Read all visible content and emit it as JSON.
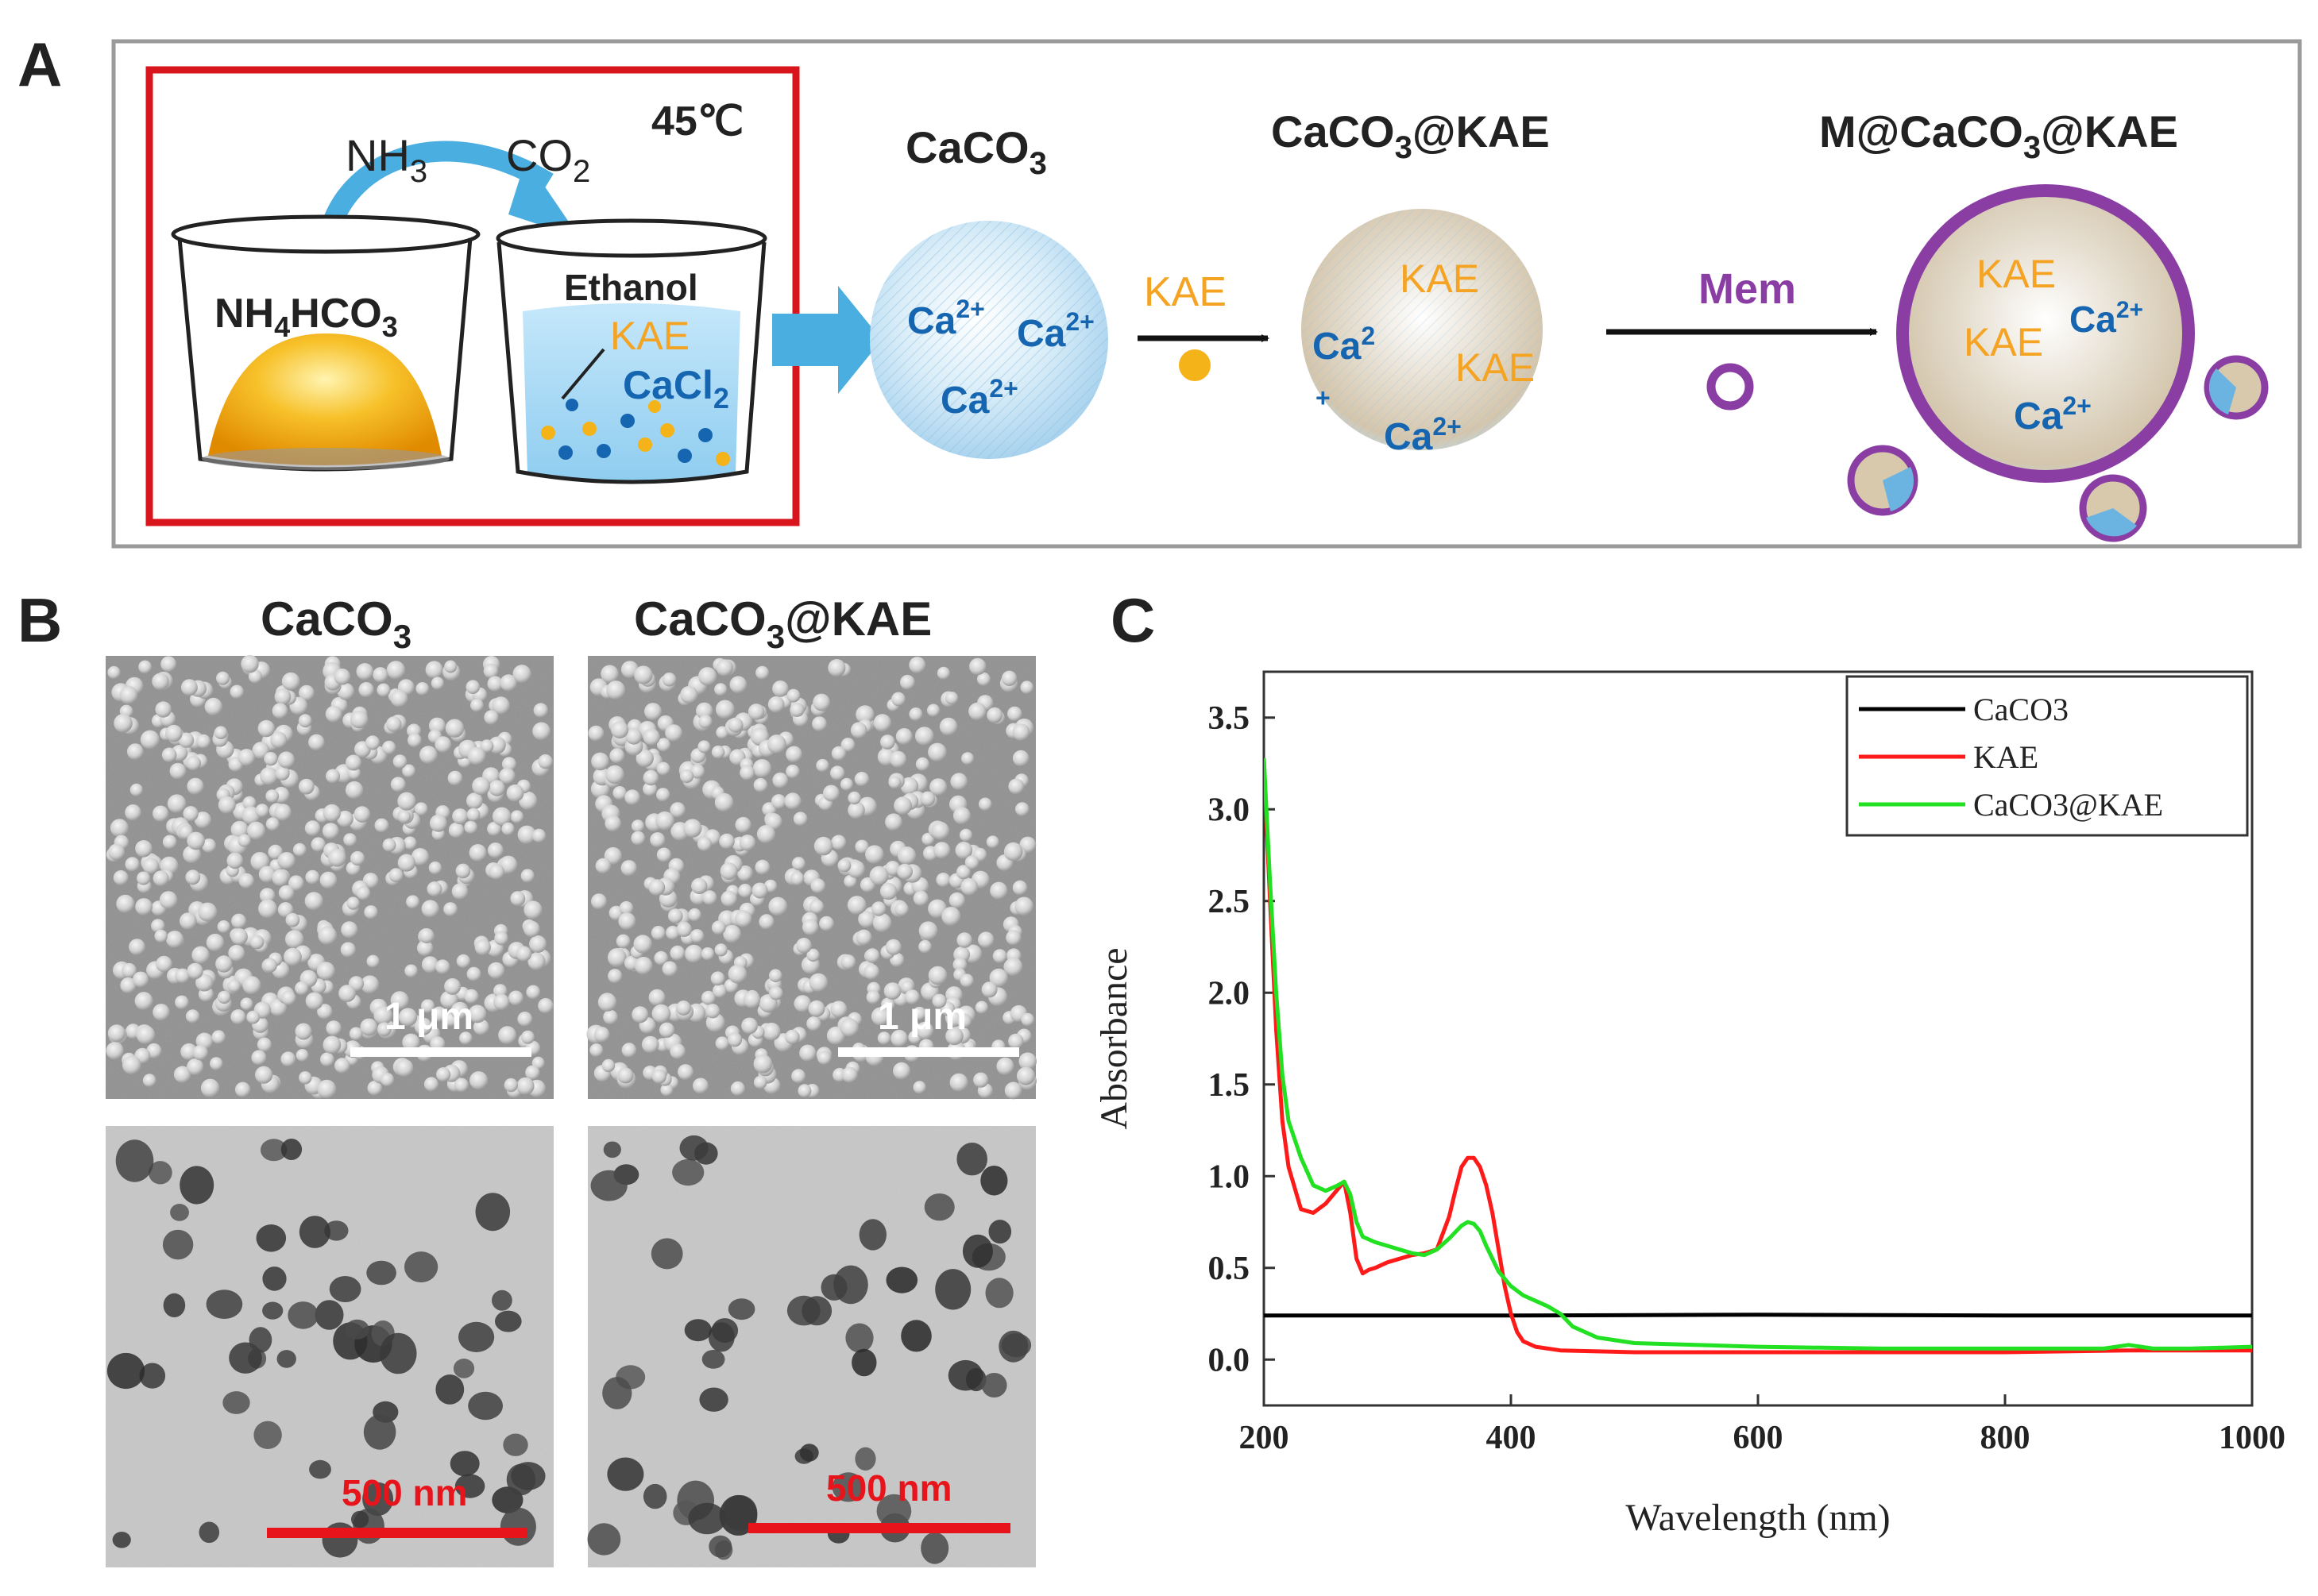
{
  "panels": {
    "a": {
      "letter": "A"
    },
    "b": {
      "letter": "B"
    },
    "c": {
      "letter": "C"
    }
  },
  "schematic": {
    "temperature": "45℃",
    "gas_left": {
      "main": "NH",
      "sub": "3"
    },
    "gas_right": {
      "main": "CO",
      "sub": "2"
    },
    "beaker_left": {
      "a": "NH",
      "sub": "4",
      "b": "HCO",
      "sub2": "3"
    },
    "beaker_right": {
      "solvent": "Ethanol",
      "drug": "KAE",
      "salt": "CaCl",
      "salt_sub": "2"
    },
    "stage1": {
      "title": "CaCO",
      "title_sub": "3",
      "ions": [
        "Ca",
        "Ca",
        "Ca"
      ],
      "charge": "2+"
    },
    "step1": {
      "label": "KAE"
    },
    "stage2": {
      "title_a": "CaCO",
      "title_sub": "3",
      "title_b": "@KAE",
      "kae_labels": [
        "KAE",
        "KAE"
      ],
      "ion1": "Ca",
      "ion1_sup": "2",
      "ion1_plus": "+",
      "ion2": "Ca",
      "ion2_sup": "2+"
    },
    "step2": {
      "label": "Mem"
    },
    "stage3": {
      "title_a": "M@CaCO",
      "title_sub": "3",
      "title_b": "@KAE",
      "kae_labels": [
        "KAE",
        "KAE"
      ],
      "ion": "Ca",
      "ion_sup": "2+"
    },
    "colors": {
      "border_red": "#d8141c",
      "ca_blue": "#1565b0",
      "kae_orange": "#f5a323",
      "mem_purple": "#8a3ea3",
      "sky": "#4aaee0"
    }
  },
  "micrographs": {
    "col1_title": {
      "a": "CaCO",
      "sub": "3"
    },
    "col2_title": {
      "a": "CaCO",
      "sub": "3",
      "b": "@KAE"
    },
    "sem_scale": "1 μm",
    "tem_scale": "500 nm"
  },
  "chart_data": {
    "type": "line",
    "title": "",
    "xlabel": "Wavelength (nm)",
    "ylabel": "Absorbance",
    "xlim": [
      200,
      1000
    ],
    "ylim": [
      -0.25,
      3.75
    ],
    "x_ticks": [
      200,
      400,
      600,
      800,
      1000
    ],
    "y_ticks": [
      0.0,
      0.5,
      1.0,
      1.5,
      2.0,
      2.5,
      3.0,
      3.5
    ],
    "x_tick_labels": [
      "200",
      "400",
      "600",
      "800",
      "1000"
    ],
    "y_tick_labels": [
      "0.0",
      "0.5",
      "1.0",
      "1.5",
      "2.0",
      "2.5",
      "3.0",
      "3.5"
    ],
    "legend_position": "top-right",
    "series": [
      {
        "name": "CaCO3",
        "color": "#000000",
        "x": [
          200,
          400,
          600,
          800,
          1000
        ],
        "y": [
          0.24,
          0.24,
          0.245,
          0.24,
          0.24
        ]
      },
      {
        "name": "KAE",
        "color": "#ff1a1a",
        "x": [
          200,
          205,
          210,
          215,
          220,
          230,
          240,
          250,
          260,
          265,
          270,
          275,
          280,
          285,
          290,
          300,
          310,
          320,
          330,
          340,
          350,
          355,
          360,
          365,
          370,
          375,
          380,
          385,
          390,
          395,
          400,
          405,
          410,
          420,
          440,
          470,
          500,
          600,
          700,
          800,
          900,
          1000
        ],
        "y": [
          3.25,
          2.5,
          1.8,
          1.3,
          1.05,
          0.82,
          0.8,
          0.85,
          0.93,
          0.97,
          0.8,
          0.55,
          0.47,
          0.49,
          0.5,
          0.53,
          0.55,
          0.57,
          0.58,
          0.6,
          0.78,
          0.92,
          1.05,
          1.1,
          1.1,
          1.05,
          0.95,
          0.8,
          0.6,
          0.4,
          0.25,
          0.15,
          0.1,
          0.07,
          0.05,
          0.045,
          0.04,
          0.04,
          0.04,
          0.04,
          0.05,
          0.05
        ]
      },
      {
        "name": "CaCO3@KAE",
        "color": "#22e022",
        "x": [
          200,
          205,
          210,
          215,
          220,
          230,
          240,
          250,
          260,
          265,
          270,
          275,
          280,
          290,
          300,
          310,
          320,
          330,
          340,
          350,
          360,
          365,
          370,
          375,
          380,
          390,
          400,
          410,
          420,
          430,
          440,
          450,
          470,
          500,
          600,
          700,
          800,
          880,
          900,
          910,
          920,
          950,
          1000
        ],
        "y": [
          3.28,
          2.6,
          2.0,
          1.55,
          1.3,
          1.1,
          0.95,
          0.92,
          0.95,
          0.97,
          0.9,
          0.75,
          0.67,
          0.64,
          0.62,
          0.6,
          0.58,
          0.57,
          0.6,
          0.66,
          0.73,
          0.75,
          0.74,
          0.7,
          0.62,
          0.48,
          0.4,
          0.35,
          0.32,
          0.29,
          0.25,
          0.18,
          0.12,
          0.09,
          0.07,
          0.06,
          0.06,
          0.06,
          0.08,
          0.07,
          0.06,
          0.06,
          0.07
        ]
      }
    ]
  }
}
